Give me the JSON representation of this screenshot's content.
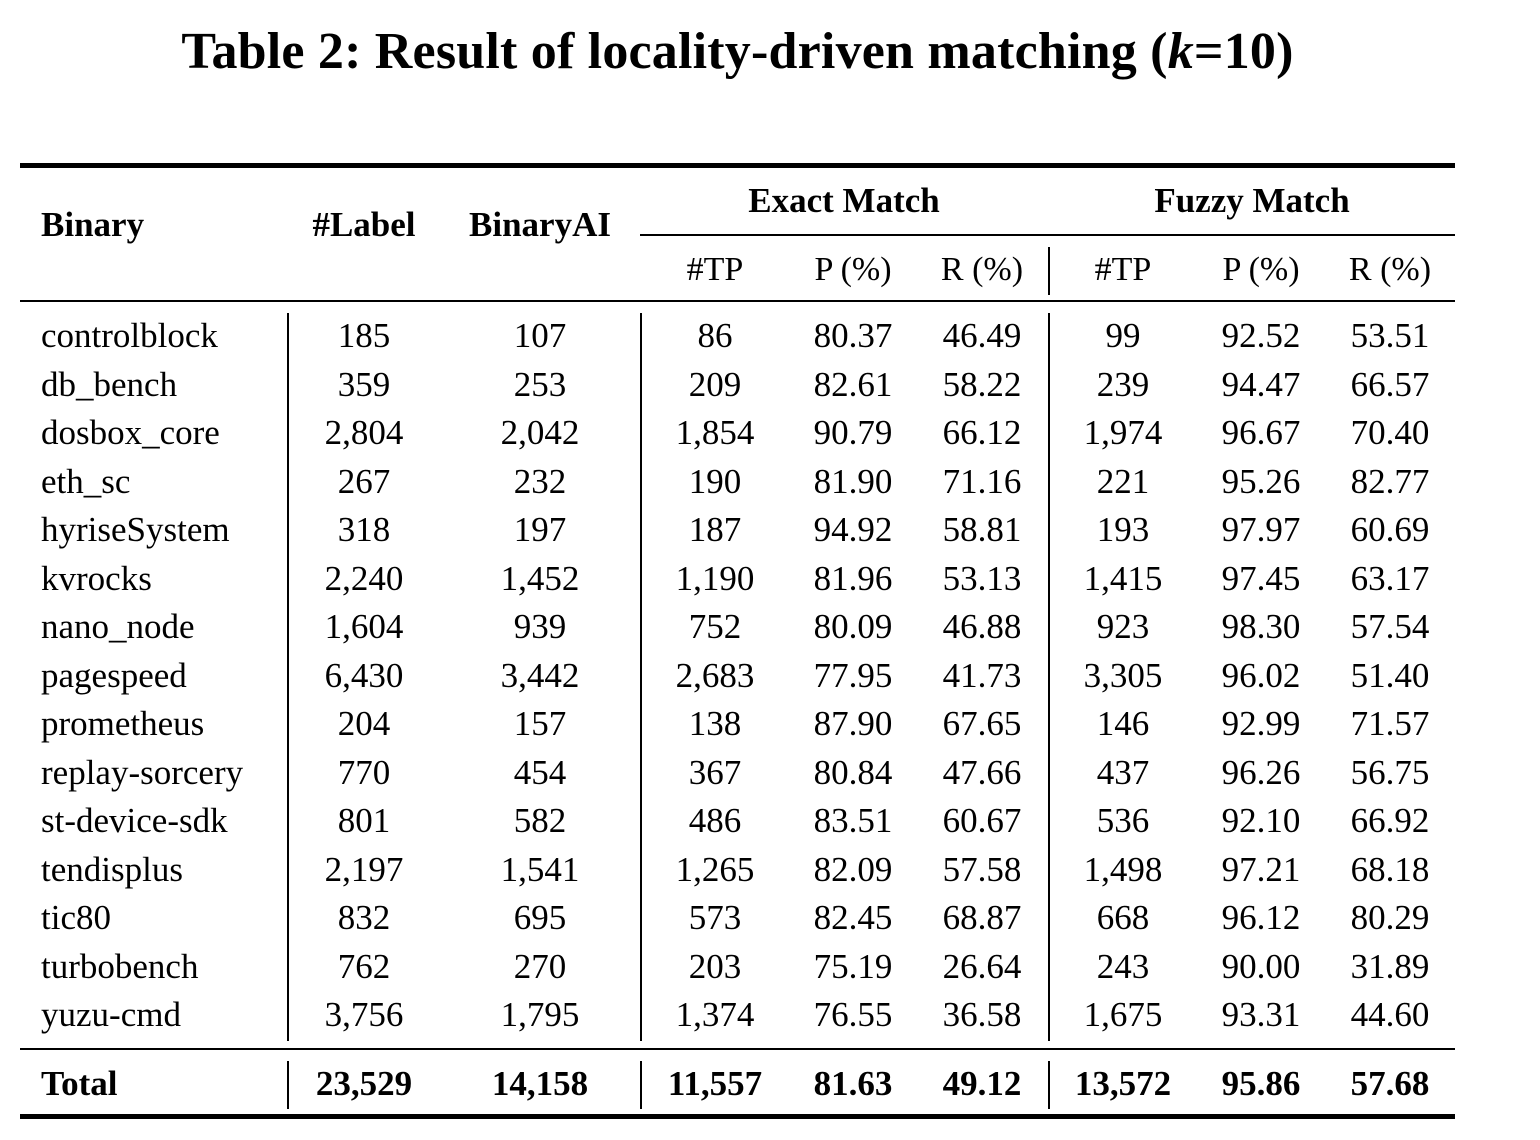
{
  "caption": {
    "prefix": "Table 2: Result of locality-driven matching (",
    "k": "k",
    "suffix": "=10)"
  },
  "headers": {
    "binary": "Binary",
    "label": "#Label",
    "binaryai": "BinaryAI",
    "exact_group": "Exact Match",
    "fuzzy_group": "Fuzzy Match",
    "exact_sub": [
      "#TP",
      "P (%)",
      "R (%)"
    ],
    "fuzzy_sub": [
      "#TP",
      "P (%)",
      "R (%)"
    ]
  },
  "rows": [
    [
      "controlblock",
      "185",
      "107",
      "86",
      "80.37",
      "46.49",
      "99",
      "92.52",
      "53.51"
    ],
    [
      "db_bench",
      "359",
      "253",
      "209",
      "82.61",
      "58.22",
      "239",
      "94.47",
      "66.57"
    ],
    [
      "dosbox_core",
      "2,804",
      "2,042",
      "1,854",
      "90.79",
      "66.12",
      "1,974",
      "96.67",
      "70.40"
    ],
    [
      "eth_sc",
      "267",
      "232",
      "190",
      "81.90",
      "71.16",
      "221",
      "95.26",
      "82.77"
    ],
    [
      "hyriseSystem",
      "318",
      "197",
      "187",
      "94.92",
      "58.81",
      "193",
      "97.97",
      "60.69"
    ],
    [
      "kvrocks",
      "2,240",
      "1,452",
      "1,190",
      "81.96",
      "53.13",
      "1,415",
      "97.45",
      "63.17"
    ],
    [
      "nano_node",
      "1,604",
      "939",
      "752",
      "80.09",
      "46.88",
      "923",
      "98.30",
      "57.54"
    ],
    [
      "pagespeed",
      "6,430",
      "3,442",
      "2,683",
      "77.95",
      "41.73",
      "3,305",
      "96.02",
      "51.40"
    ],
    [
      "prometheus",
      "204",
      "157",
      "138",
      "87.90",
      "67.65",
      "146",
      "92.99",
      "71.57"
    ],
    [
      "replay-sorcery",
      "770",
      "454",
      "367",
      "80.84",
      "47.66",
      "437",
      "96.26",
      "56.75"
    ],
    [
      "st-device-sdk",
      "801",
      "582",
      "486",
      "83.51",
      "60.67",
      "536",
      "92.10",
      "66.92"
    ],
    [
      "tendisplus",
      "2,197",
      "1,541",
      "1,265",
      "82.09",
      "57.58",
      "1,498",
      "97.21",
      "68.18"
    ],
    [
      "tic80",
      "832",
      "695",
      "573",
      "82.45",
      "68.87",
      "668",
      "96.12",
      "80.29"
    ],
    [
      "turbobench",
      "762",
      "270",
      "203",
      "75.19",
      "26.64",
      "243",
      "90.00",
      "31.89"
    ],
    [
      "yuzu-cmd",
      "3,756",
      "1,795",
      "1,374",
      "76.55",
      "36.58",
      "1,675",
      "93.31",
      "44.60"
    ]
  ],
  "total": [
    "Total",
    "23,529",
    "14,158",
    "11,557",
    "81.63",
    "49.12",
    "13,572",
    "95.86",
    "57.68"
  ]
}
